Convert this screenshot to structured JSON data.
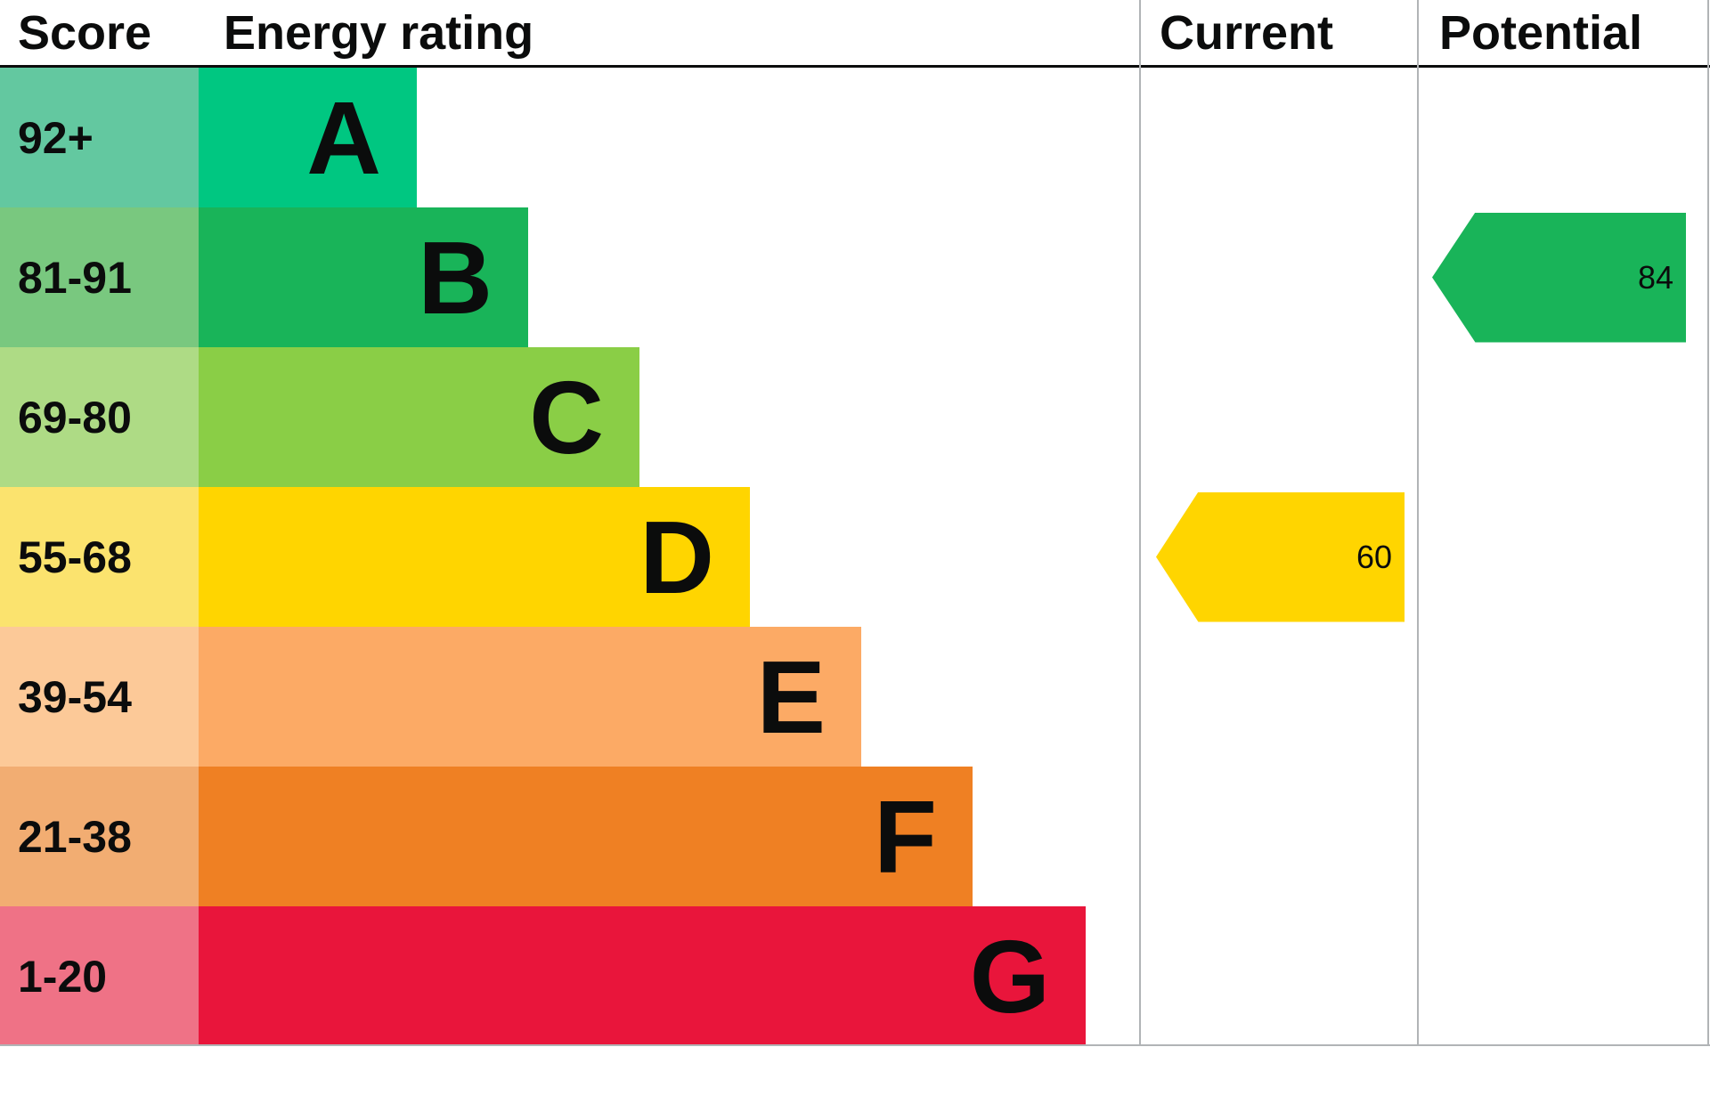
{
  "header": {
    "score_label": "Score",
    "energy_rating_label": "Energy rating",
    "current_label": "Current",
    "potential_label": "Potential"
  },
  "chart_data": {
    "type": "bar",
    "title": "Energy rating",
    "categories": [
      "A",
      "B",
      "C",
      "D",
      "E",
      "F",
      "G"
    ],
    "bands": [
      {
        "letter": "A",
        "score": "92+",
        "bar_color": "#00c781",
        "score_bg": "#63c8a0",
        "width_pct": 23.2
      },
      {
        "letter": "B",
        "score": "81-91",
        "bar_color": "#19b459",
        "score_bg": "#79c87f",
        "width_pct": 35.0
      },
      {
        "letter": "C",
        "score": "69-80",
        "bar_color": "#8ace46",
        "score_bg": "#aedb85",
        "width_pct": 46.8
      },
      {
        "letter": "D",
        "score": "55-68",
        "bar_color": "#ffd500",
        "score_bg": "#fbe36e",
        "width_pct": 58.6
      },
      {
        "letter": "E",
        "score": "39-54",
        "bar_color": "#fcaa65",
        "score_bg": "#fcc998",
        "width_pct": 70.4
      },
      {
        "letter": "F",
        "score": "21-38",
        "bar_color": "#ef8023",
        "score_bg": "#f2ad72",
        "width_pct": 82.2
      },
      {
        "letter": "G",
        "score": "1-20",
        "bar_color": "#e9153b",
        "score_bg": "#ef7286",
        "width_pct": 94.2
      }
    ],
    "markers": {
      "current": {
        "value": "60",
        "band": "D",
        "row_index": 3,
        "color": "#ffd500"
      },
      "potential": {
        "value": "84",
        "band": "B",
        "row_index": 1,
        "color": "#19b459"
      }
    }
  }
}
